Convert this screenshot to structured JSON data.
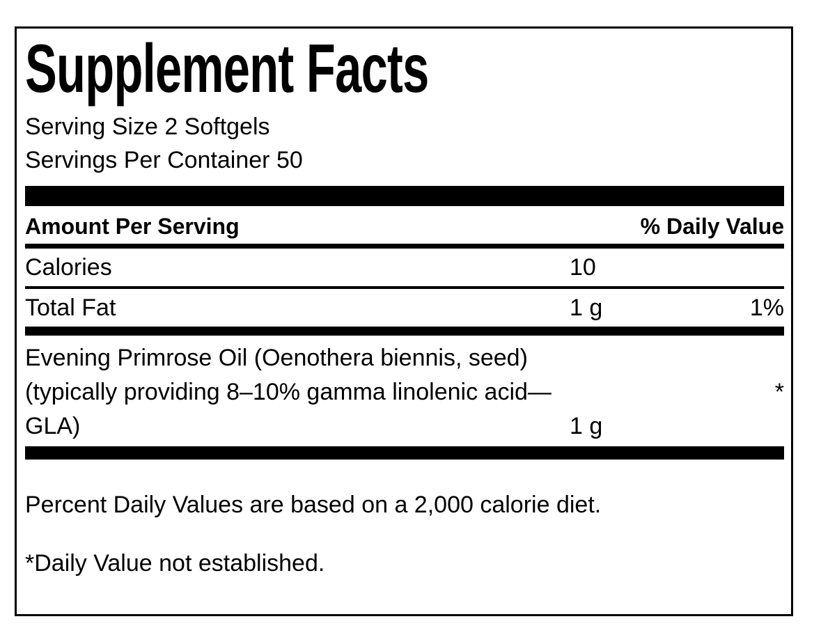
{
  "label": {
    "title": "Supplement Facts",
    "serving_size": "Serving Size 2 Softgels",
    "servings_per_container": "Servings Per Container 50",
    "header": {
      "amount_per_serving": "Amount Per Serving",
      "percent_daily_value": "% Daily Value"
    },
    "rows": [
      {
        "name": "Calories",
        "amount": "10",
        "dv": ""
      },
      {
        "name": "Total Fat",
        "amount": "1 g",
        "dv": "1%"
      }
    ],
    "ingredient": {
      "line1": "Evening Primrose Oil (Oenothera biennis, seed)",
      "line2": "(typically providing 8–10% gamma linolenic acid—",
      "line3": "GLA)",
      "amount": "1 g",
      "dv_symbol": "*"
    },
    "footnotes": {
      "daily_values": "Percent Daily Values are based on a 2,000 calorie diet.",
      "not_established": "*Daily Value not established."
    },
    "colors": {
      "ink": "#000000",
      "background": "#ffffff"
    }
  }
}
